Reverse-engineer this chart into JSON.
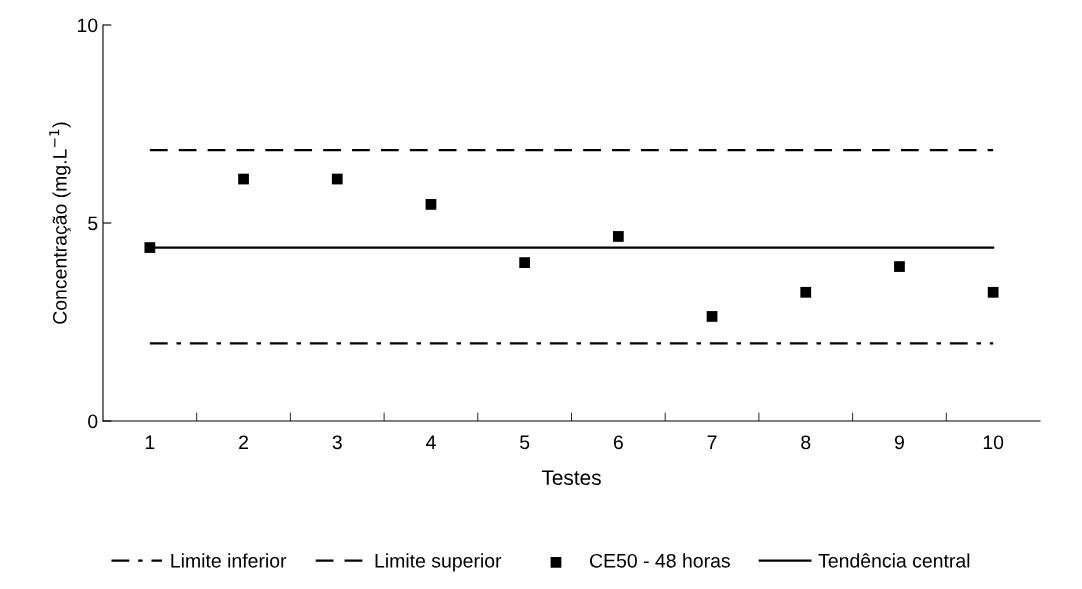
{
  "chart_data": {
    "type": "scatter",
    "xlabel": "Testes",
    "ylabel": "Concentração (mg.L$^{−1}$)",
    "categories": [
      "1",
      "2",
      "3",
      "4",
      "5",
      "6",
      "7",
      "8",
      "9",
      "10"
    ],
    "ylim": [
      0,
      10
    ],
    "yticks": [
      0,
      5,
      10
    ],
    "grid": false,
    "legend": "bottom",
    "series": [
      {
        "name": "Limite inferior",
        "type": "line",
        "color": "#000000",
        "line_style": "dashdot",
        "marker": "none",
        "values": [
          1.96,
          1.96,
          1.96,
          1.96,
          1.96,
          1.96,
          1.96,
          1.96,
          1.96,
          1.96
        ]
      },
      {
        "name": "Limite superior",
        "type": "line",
        "color": "#000000",
        "line_style": "dashed",
        "marker": "none",
        "values": [
          6.84,
          6.84,
          6.84,
          6.84,
          6.84,
          6.84,
          6.84,
          6.84,
          6.84,
          6.84
        ]
      },
      {
        "name": "CE50 - 48 horas",
        "color": "#000000",
        "marker": "square",
        "values": [
          4.38,
          6.11,
          6.11,
          5.47,
          4.0,
          4.66,
          2.64,
          3.25,
          3.9,
          3.25
        ]
      },
      {
        "name": "Tendência central",
        "type": "line",
        "color": "#000000",
        "line_style": "solid",
        "marker": "none",
        "values": [
          4.38,
          4.38,
          4.38,
          4.38,
          4.38,
          4.38,
          4.38,
          4.38,
          4.38,
          4.38
        ]
      }
    ]
  }
}
